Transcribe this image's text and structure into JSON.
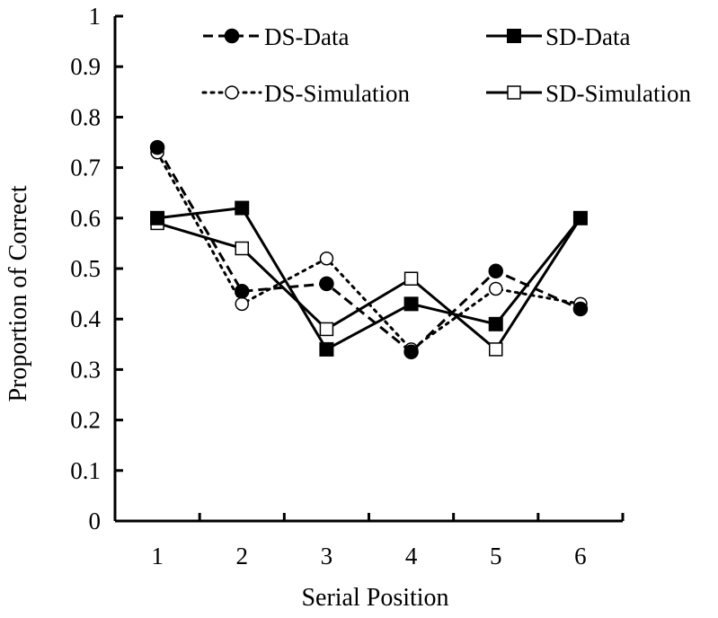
{
  "chart_data": {
    "type": "line",
    "title": "",
    "xlabel": "Serial Position",
    "ylabel": "Proportion of Correct",
    "x": [
      1,
      2,
      3,
      4,
      5,
      6
    ],
    "xlim": [
      0.5,
      6.5
    ],
    "ylim": [
      0,
      1
    ],
    "yticks": [
      "0",
      "0.1",
      "0.2",
      "0.3",
      "0.4",
      "0.5",
      "0.6",
      "0.7",
      "0.8",
      "0.9",
      "1"
    ],
    "xticks": [
      "1",
      "2",
      "3",
      "4",
      "5",
      "6"
    ],
    "grid": false,
    "legend_position": "top",
    "series": [
      {
        "name": "DS-Data",
        "values": [
          0.74,
          0.455,
          0.47,
          0.335,
          0.495,
          0.42
        ],
        "line": "dashed",
        "marker": "filled-circle"
      },
      {
        "name": "SD-Data",
        "values": [
          0.6,
          0.62,
          0.34,
          0.43,
          0.39,
          0.6
        ],
        "line": "solid",
        "marker": "filled-square"
      },
      {
        "name": "DS-Simulation",
        "values": [
          0.73,
          0.43,
          0.52,
          0.34,
          0.46,
          0.43
        ],
        "line": "dotted",
        "marker": "open-circle"
      },
      {
        "name": "SD-Simulation",
        "values": [
          0.59,
          0.54,
          0.38,
          0.48,
          0.34,
          0.6
        ],
        "line": "solid",
        "marker": "open-square"
      }
    ]
  }
}
